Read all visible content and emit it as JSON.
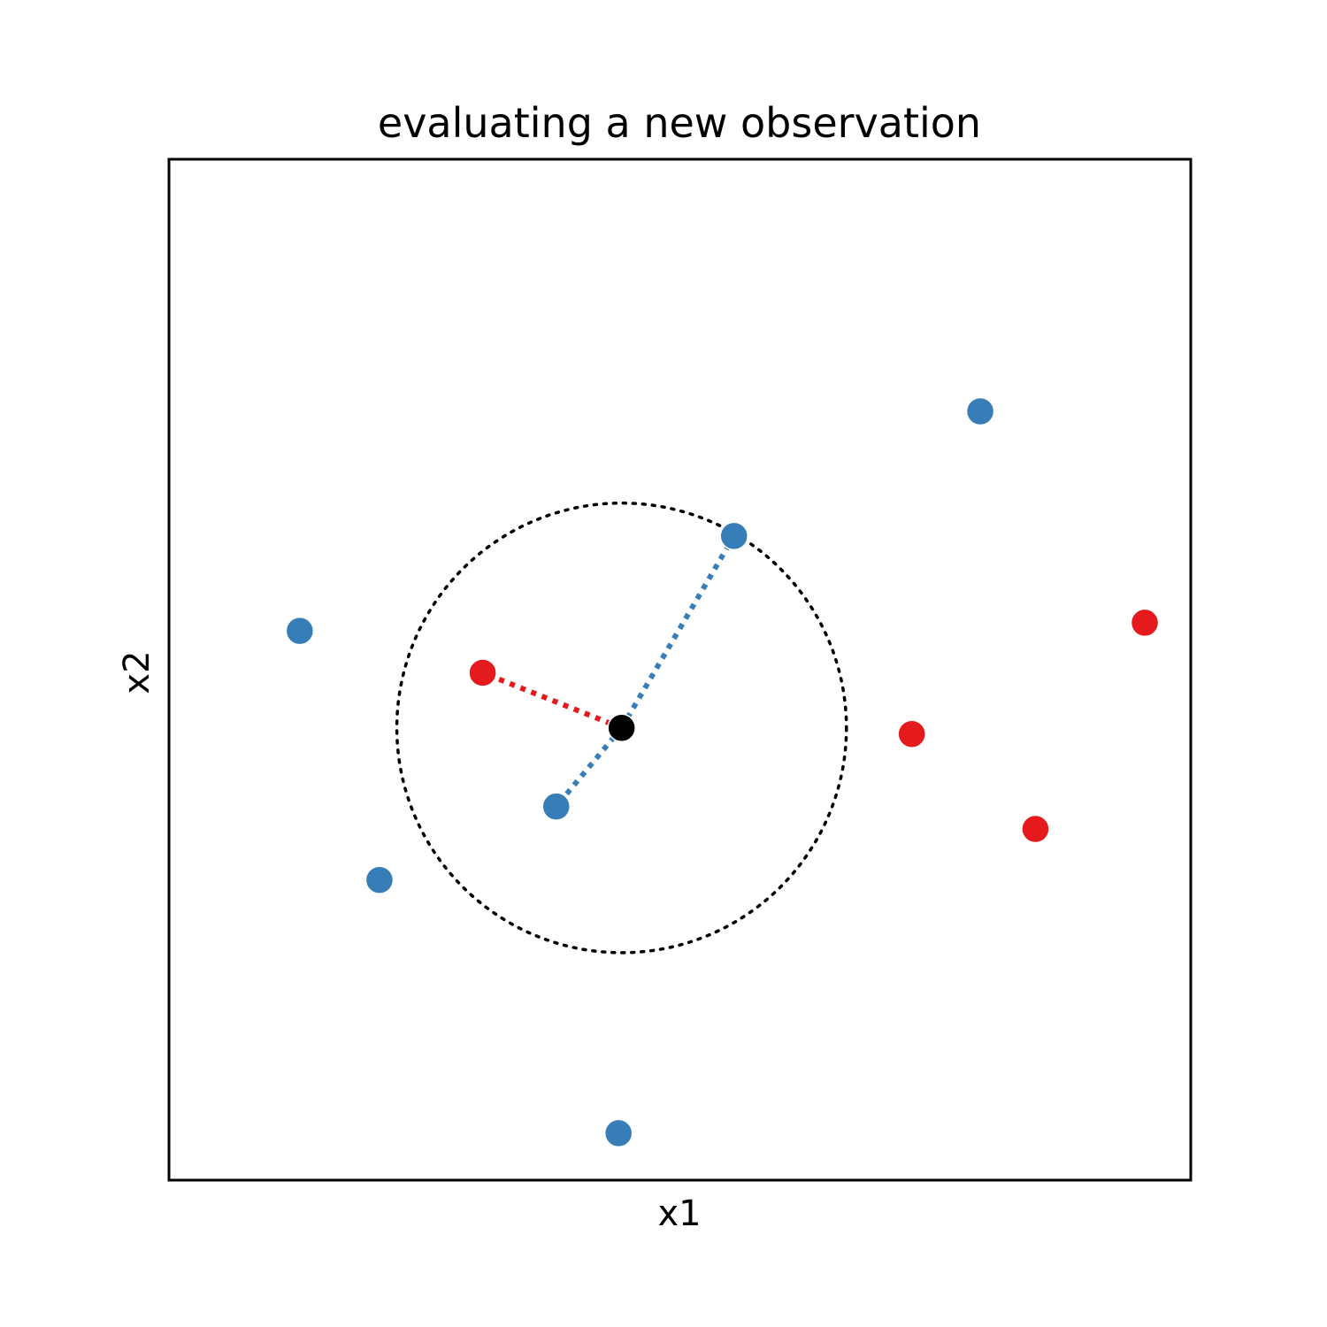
{
  "chart_data": {
    "type": "scatter",
    "title": "evaluating a new observation",
    "xlabel": "x1",
    "ylabel": "x2",
    "xlim": [
      0,
      1
    ],
    "ylim": [
      0,
      1
    ],
    "grid": false,
    "ticks": false,
    "colors": {
      "blue": "#377eb8",
      "red": "#e41a1c",
      "query": "#000000"
    },
    "series": [
      {
        "color": "#377eb8",
        "points": [
          {
            "x": 0.128,
            "y": 0.538
          },
          {
            "x": 0.206,
            "y": 0.294
          },
          {
            "x": 0.379,
            "y": 0.366
          },
          {
            "x": 0.553,
            "y": 0.631
          },
          {
            "x": 0.44,
            "y": 0.046
          },
          {
            "x": 0.794,
            "y": 0.753
          }
        ]
      },
      {
        "color": "#e41a1c",
        "points": [
          {
            "x": 0.307,
            "y": 0.497
          },
          {
            "x": 0.727,
            "y": 0.437
          },
          {
            "x": 0.848,
            "y": 0.344
          },
          {
            "x": 0.955,
            "y": 0.546
          }
        ]
      }
    ],
    "query_point": {
      "x": 0.443,
      "y": 0.443,
      "color": "#000000"
    },
    "neighborhood_circle": {
      "cx": 0.443,
      "cy": 0.443,
      "r": 0.22,
      "style": "dotted",
      "color": "#000000"
    },
    "neighbor_links": [
      {
        "to": {
          "x": 0.307,
          "y": 0.497
        },
        "color": "#e41a1c",
        "style": "dotted"
      },
      {
        "to": {
          "x": 0.379,
          "y": 0.366
        },
        "color": "#377eb8",
        "style": "dotted"
      },
      {
        "to": {
          "x": 0.553,
          "y": 0.631
        },
        "color": "#377eb8",
        "style": "dotted"
      }
    ]
  }
}
